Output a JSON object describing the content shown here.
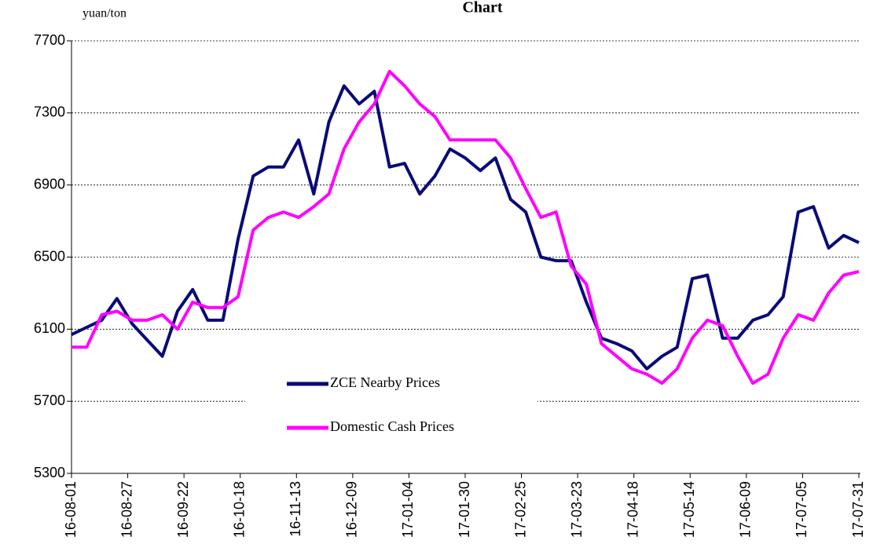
{
  "chart_data": {
    "type": "line",
    "title": "Chart",
    "y_label": "yuan/ton",
    "x": [
      "16-08-01",
      "16-08-08",
      "16-08-15",
      "16-08-22",
      "16-08-29",
      "16-09-05",
      "16-09-12",
      "16-09-19",
      "16-09-26",
      "16-10-03",
      "16-10-10",
      "16-10-17",
      "16-10-24",
      "16-10-31",
      "16-11-07",
      "16-11-14",
      "16-11-21",
      "16-11-28",
      "16-12-05",
      "16-12-12",
      "16-12-19",
      "16-12-26",
      "17-01-02",
      "17-01-09",
      "17-01-16",
      "17-01-23",
      "17-01-30",
      "17-02-06",
      "17-02-13",
      "17-02-20",
      "17-02-27",
      "17-03-06",
      "17-03-13",
      "17-03-20",
      "17-03-27",
      "17-04-03",
      "17-04-10",
      "17-04-17",
      "17-04-24",
      "17-05-01",
      "17-05-08",
      "17-05-15",
      "17-05-22",
      "17-05-29",
      "17-06-05",
      "17-06-12",
      "17-06-19",
      "17-06-26",
      "17-07-03",
      "17-07-10",
      "17-07-17",
      "17-07-24",
      "17-07-31"
    ],
    "series": [
      {
        "name": "ZCE Nearby Prices",
        "color": "#0a0a78",
        "values": [
          6070,
          6110,
          6150,
          6270,
          6130,
          6040,
          5950,
          6200,
          6320,
          6150,
          6150,
          6600,
          6950,
          7000,
          7000,
          7150,
          6850,
          7250,
          7450,
          7350,
          7420,
          7000,
          7020,
          6850,
          6950,
          7100,
          7050,
          6980,
          7050,
          6820,
          6750,
          6500,
          6480,
          6480,
          6250,
          6050,
          6020,
          5980,
          5880,
          5950,
          6000,
          6380,
          6400,
          6050,
          6050,
          6150,
          6180,
          6280,
          6750,
          6780,
          6550,
          6620,
          6580
        ]
      },
      {
        "name": "Domestic Cash Prices",
        "color": "#ff00ff",
        "values": [
          6000,
          6000,
          6180,
          6200,
          6150,
          6150,
          6180,
          6100,
          6250,
          6220,
          6220,
          6280,
          6650,
          6720,
          6750,
          6720,
          6780,
          6850,
          7100,
          7250,
          7350,
          7530,
          7450,
          7350,
          7280,
          7150,
          7150,
          7150,
          7150,
          7050,
          6880,
          6720,
          6750,
          6450,
          6350,
          6020,
          5950,
          5880,
          5850,
          5800,
          5880,
          6050,
          6150,
          6120,
          5950,
          5800,
          5850,
          6050,
          6180,
          6150,
          6300,
          6400,
          6420
        ]
      }
    ],
    "xlim": [
      "16-08-01",
      "17-07-31"
    ],
    "xticks": [
      "16-08-01",
      "16-08-27",
      "16-09-22",
      "16-10-18",
      "16-11-13",
      "16-12-09",
      "17-01-04",
      "17-01-30",
      "17-02-25",
      "17-03-23",
      "17-04-18",
      "17-05-14",
      "17-06-09",
      "17-07-05",
      "17-07-31"
    ],
    "ylim": [
      5300,
      7700
    ],
    "yticks": [
      5300,
      5700,
      6100,
      6500,
      6900,
      7300,
      7700
    ],
    "grid": true,
    "legend": "center-bottom"
  }
}
